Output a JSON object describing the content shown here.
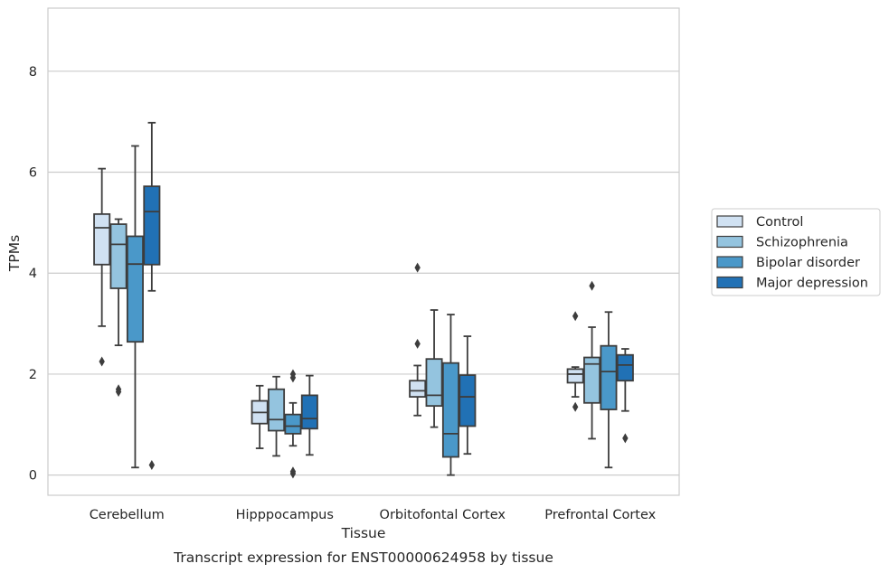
{
  "chart_data": {
    "type": "box",
    "caption": "Transcript expression for ENST00000624958 by tissue",
    "xlabel": "Tissue",
    "ylabel": "TPMs",
    "ylim": [
      -0.4,
      9.25
    ],
    "yticks": [
      0,
      2,
      4,
      6,
      8
    ],
    "grid": true,
    "legend_position": "right",
    "categories": [
      "Cerebellum",
      "Hipppocampus",
      "Orbitofontal Cortex",
      "Prefrontal Cortex"
    ],
    "series": [
      {
        "name": "Control",
        "color": "#d0e1f2",
        "boxes": [
          {
            "whislo": 2.95,
            "q1": 4.17,
            "med": 4.9,
            "q3": 5.17,
            "whishi": 6.07,
            "fliers": [
              2.25
            ]
          },
          {
            "whislo": 0.53,
            "q1": 1.02,
            "med": 1.24,
            "q3": 1.47,
            "whishi": 1.77,
            "fliers": []
          },
          {
            "whislo": 1.18,
            "q1": 1.55,
            "med": 1.67,
            "q3": 1.87,
            "whishi": 2.17,
            "fliers": [
              4.11,
              2.6
            ]
          },
          {
            "whislo": 1.55,
            "q1": 1.83,
            "med": 2.0,
            "q3": 2.1,
            "whishi": 2.14,
            "fliers": [
              3.15,
              1.35
            ]
          }
        ]
      },
      {
        "name": "Schizophrenia",
        "color": "#94c4df",
        "boxes": [
          {
            "whislo": 2.57,
            "q1": 3.7,
            "med": 4.57,
            "q3": 4.97,
            "whishi": 5.07,
            "fliers": [
              1.7,
              1.65
            ]
          },
          {
            "whislo": 0.38,
            "q1": 0.88,
            "med": 1.1,
            "q3": 1.7,
            "whishi": 1.95,
            "fliers": []
          },
          {
            "whislo": 0.95,
            "q1": 1.37,
            "med": 1.58,
            "q3": 2.3,
            "whishi": 3.27,
            "fliers": []
          },
          {
            "whislo": 0.72,
            "q1": 1.43,
            "med": 2.2,
            "q3": 2.33,
            "whishi": 2.93,
            "fliers": [
              3.75
            ]
          }
        ]
      },
      {
        "name": "Bipolar disorder",
        "color": "#4a98c9",
        "boxes": [
          {
            "whislo": 0.15,
            "q1": 2.64,
            "med": 4.18,
            "q3": 4.73,
            "whishi": 6.52,
            "fliers": []
          },
          {
            "whislo": 0.58,
            "q1": 0.82,
            "med": 0.97,
            "q3": 1.2,
            "whishi": 1.43,
            "fliers": [
              2.0,
              1.93,
              0.07,
              0.03
            ]
          },
          {
            "whislo": 0.0,
            "q1": 0.36,
            "med": 0.82,
            "q3": 2.22,
            "whishi": 3.18,
            "fliers": []
          },
          {
            "whislo": 0.15,
            "q1": 1.3,
            "med": 2.05,
            "q3": 2.56,
            "whishi": 3.23,
            "fliers": []
          }
        ]
      },
      {
        "name": "Major depression",
        "color": "#2171b5",
        "boxes": [
          {
            "whislo": 3.65,
            "q1": 4.17,
            "med": 5.22,
            "q3": 5.72,
            "whishi": 6.98,
            "fliers": [
              0.2
            ]
          },
          {
            "whislo": 0.4,
            "q1": 0.92,
            "med": 1.12,
            "q3": 1.58,
            "whishi": 1.97,
            "fliers": []
          },
          {
            "whislo": 0.42,
            "q1": 0.97,
            "med": 1.55,
            "q3": 1.98,
            "whishi": 2.75,
            "fliers": []
          },
          {
            "whislo": 1.27,
            "q1": 1.87,
            "med": 2.18,
            "q3": 2.38,
            "whishi": 2.5,
            "fliers": [
              0.73
            ]
          }
        ]
      }
    ]
  }
}
